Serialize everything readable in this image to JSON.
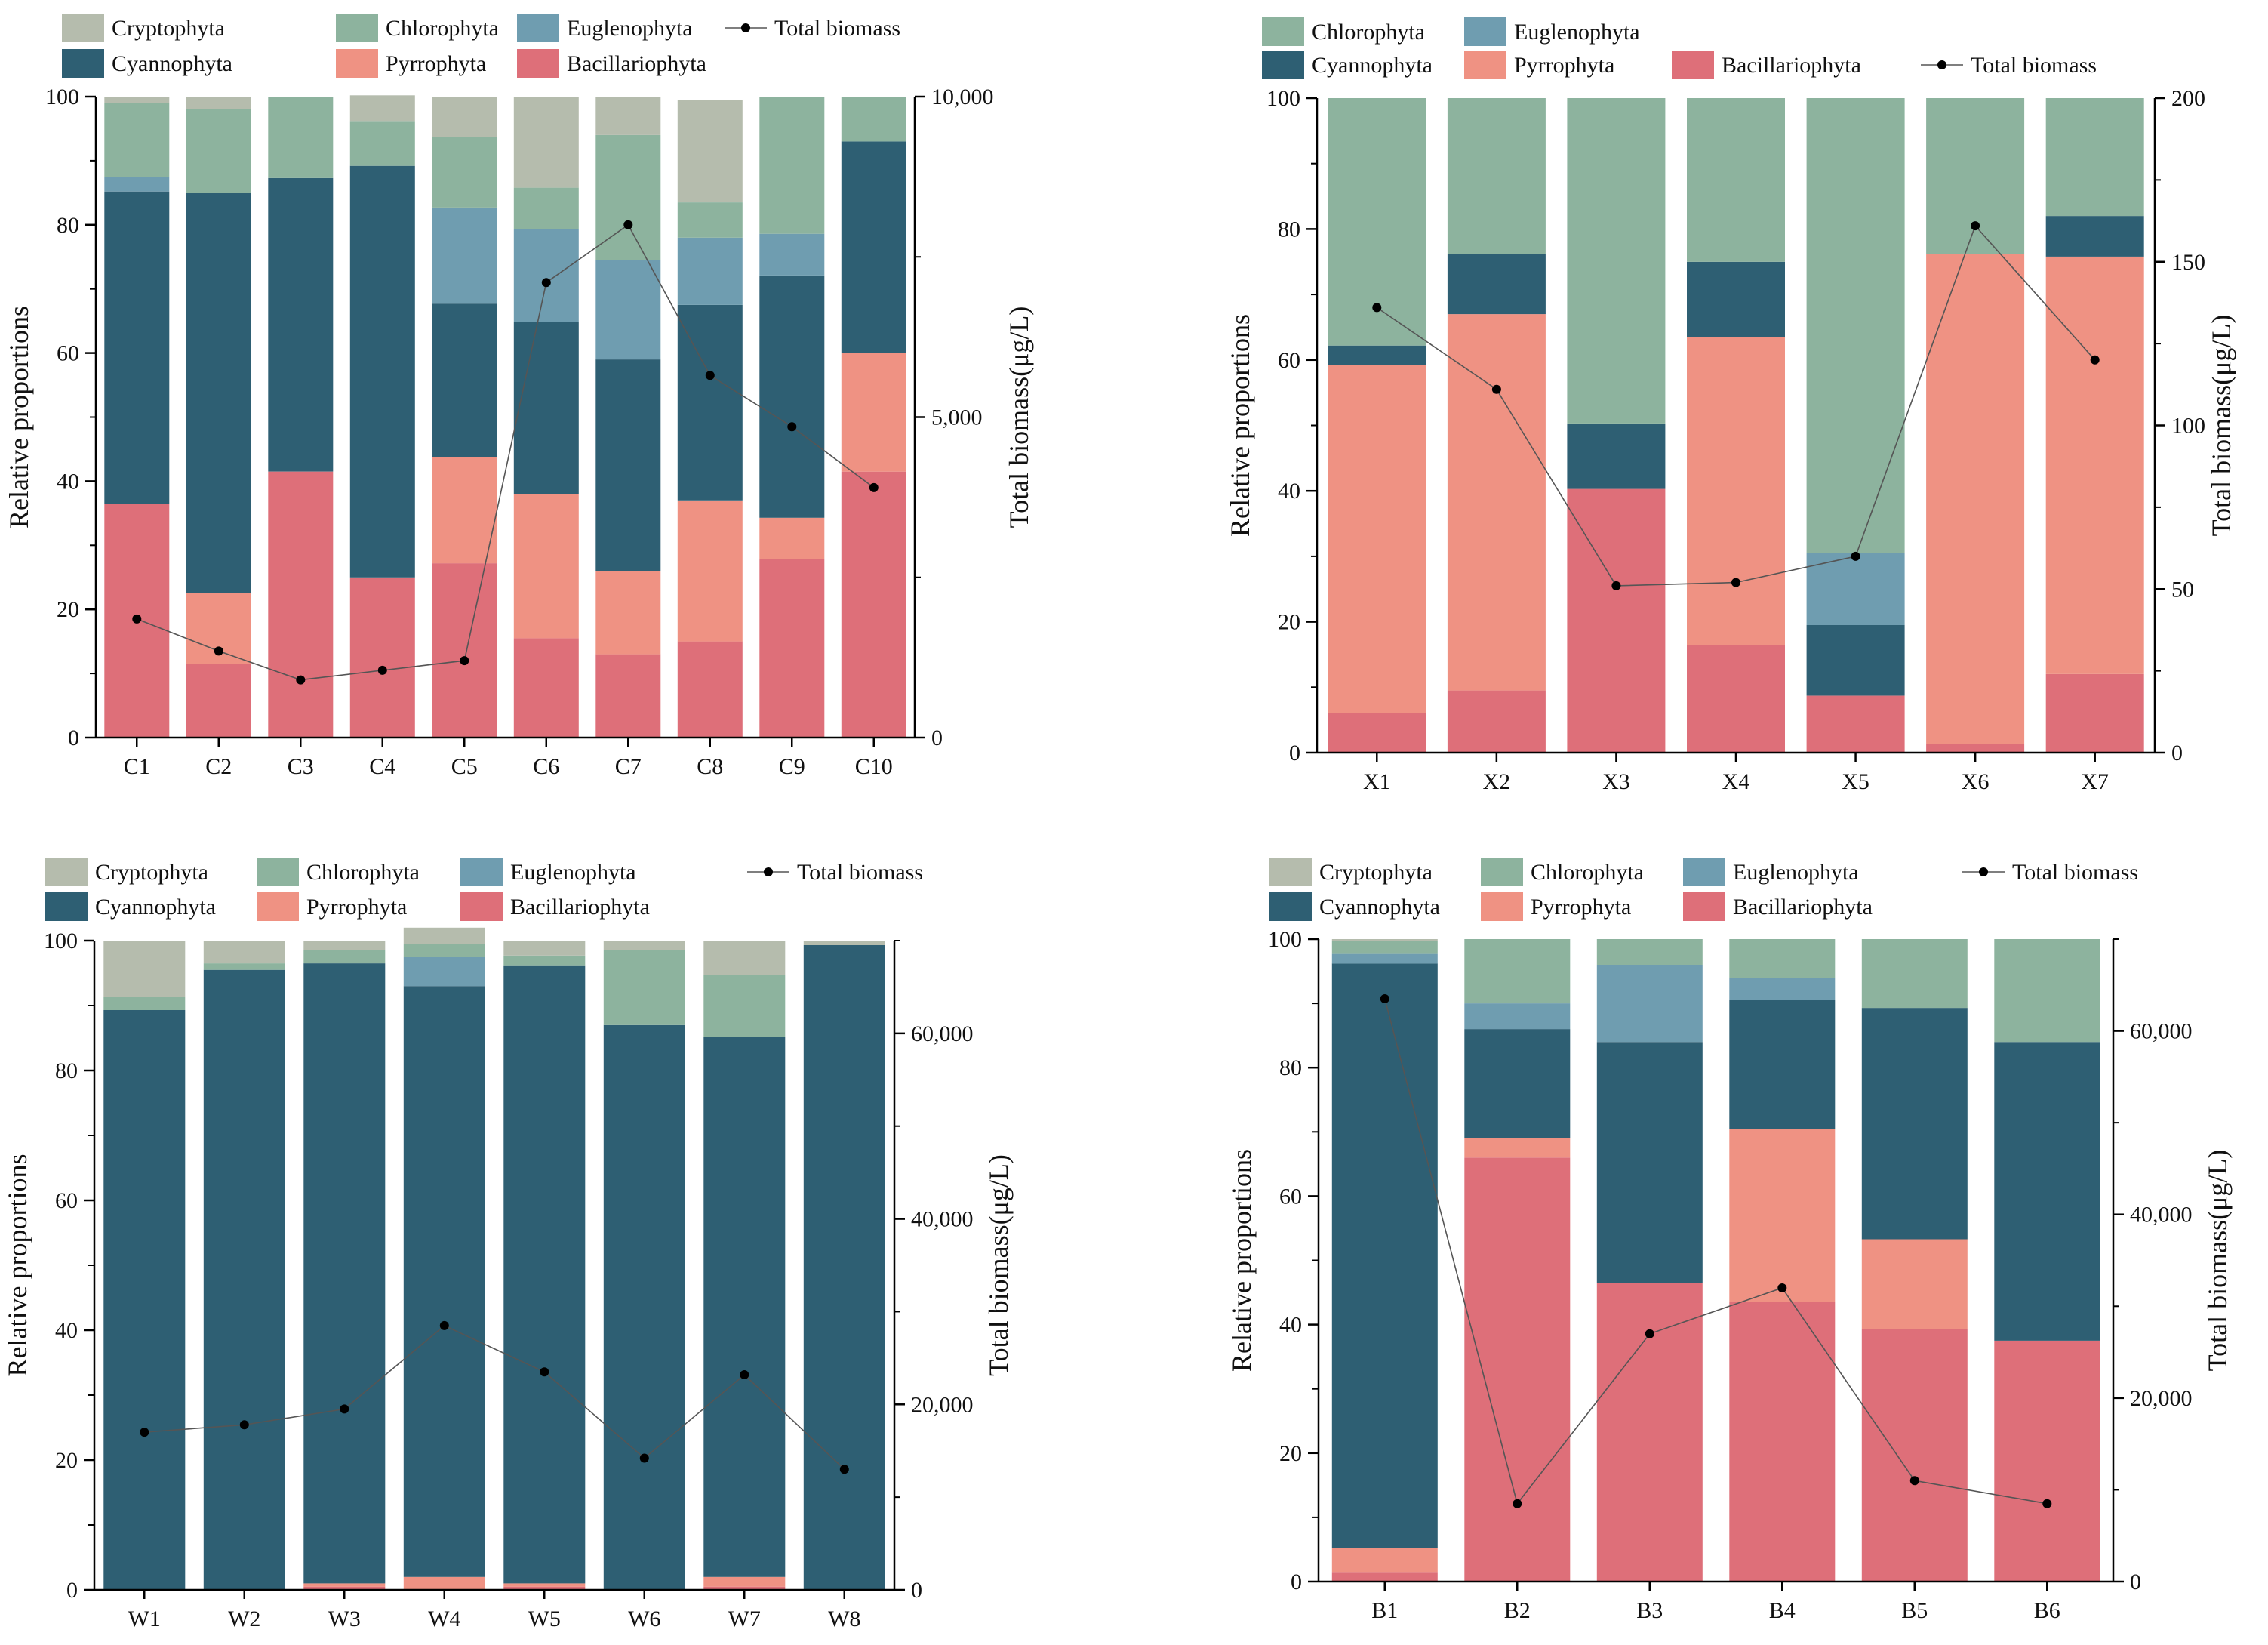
{
  "colors": {
    "Cryptophyta": "#b5bcad",
    "Chlorophyta": "#8db39e",
    "Euglenophyta": "#6f9db0",
    "Cyannophyta": "#2e5f73",
    "Pyrrophyta": "#ef9283",
    "Bacillariophyta": "#de6f79",
    "line": "#555555",
    "marker": "#000000"
  },
  "chart_data": [
    {
      "id": "C",
      "type": "bar",
      "stacked": true,
      "categories": [
        "C1",
        "C2",
        "C3",
        "C4",
        "C5",
        "C6",
        "C7",
        "C8",
        "C9",
        "C10"
      ],
      "legend": [
        "Cryptophyta",
        "Chlorophyta",
        "Euglenophyta",
        "Total biomass",
        "Cyannophyta",
        "Pyrrophyta",
        "Bacillariophyta"
      ],
      "ylabel": "Relative proportions",
      "y2label": "Total biomass(μg/L)",
      "ylim": [
        0,
        100
      ],
      "yticks": [
        "0",
        "20",
        "40",
        "60",
        "80",
        "100"
      ],
      "y2lim": [
        0,
        10000
      ],
      "y2ticks": [
        "0",
        "5,000",
        "10,000"
      ],
      "series": [
        {
          "name": "Bacillariophyta",
          "values": [
            36.5,
            11.5,
            41.5,
            25,
            27.2,
            15.5,
            13,
            15,
            27.8,
            41.5
          ]
        },
        {
          "name": "Pyrrophyta",
          "values": [
            0,
            11,
            0,
            0,
            16.5,
            22.5,
            13,
            22,
            6.5,
            18.5
          ]
        },
        {
          "name": "Cyannophyta",
          "values": [
            48.7,
            62.5,
            45.8,
            64.2,
            24,
            26.8,
            33,
            30.5,
            37.8,
            33
          ]
        },
        {
          "name": "Euglenophyta",
          "values": [
            2.3,
            0,
            0,
            0,
            15,
            14.5,
            15.5,
            10.5,
            6.5,
            0
          ]
        },
        {
          "name": "Chlorophyta",
          "values": [
            11.5,
            13,
            12.7,
            7,
            11,
            6.5,
            19.5,
            5.5,
            21.4,
            7
          ]
        },
        {
          "name": "Cryptophyta",
          "values": [
            1,
            2,
            0,
            4,
            6.3,
            14.2,
            6,
            16,
            0,
            0
          ]
        }
      ],
      "biomass": [
        1850,
        1350,
        900,
        1050,
        1200,
        7100,
        8000,
        5650,
        4850,
        3900
      ]
    },
    {
      "id": "X",
      "type": "bar",
      "stacked": true,
      "categories": [
        "X1",
        "X2",
        "X3",
        "X4",
        "X5",
        "X6",
        "X7"
      ],
      "legend": [
        "Chlorophyta",
        "Euglenophyta",
        "Cyannophyta",
        "Pyrrophyta",
        "Bacillariophyta",
        "Total biomass"
      ],
      "ylabel": "Relative proportions",
      "y2label": "Total biomass(μg/L)",
      "ylim": [
        0,
        100
      ],
      "yticks": [
        "0",
        "20",
        "40",
        "60",
        "80",
        "100"
      ],
      "y2lim": [
        0,
        200
      ],
      "y2ticks": [
        "0",
        "50",
        "100",
        "150",
        "200"
      ],
      "series": [
        {
          "name": "Bacillariophyta",
          "values": [
            6,
            9.5,
            40.3,
            16.5,
            8.7,
            1.3,
            12
          ]
        },
        {
          "name": "Pyrrophyta",
          "values": [
            53.2,
            57.5,
            0,
            47,
            0,
            74.9,
            63.8
          ]
        },
        {
          "name": "Cyannophyta",
          "values": [
            3,
            9.2,
            10,
            11.5,
            10.8,
            0,
            6.2
          ]
        },
        {
          "name": "Euglenophyta",
          "values": [
            0,
            0,
            0,
            0,
            11,
            0,
            0
          ]
        },
        {
          "name": "Chlorophyta",
          "values": [
            37.8,
            23.8,
            49.7,
            25,
            69.5,
            23.8,
            18
          ]
        }
      ],
      "biomass": [
        136,
        111,
        51,
        52,
        60,
        161,
        120
      ]
    },
    {
      "id": "W",
      "type": "bar",
      "stacked": true,
      "categories": [
        "W1",
        "W2",
        "W3",
        "W4",
        "W5",
        "W6",
        "W7",
        "W8"
      ],
      "legend": [
        "Cryptophyta",
        "Chlorophyta",
        "Euglenophyta",
        "Total biomass",
        "Cyannophyta",
        "Pyrrophyta",
        "Bacillariophyta"
      ],
      "ylabel": "Relative proportions",
      "y2label": "Total biomass(μg/L)",
      "ylim": [
        0,
        100
      ],
      "yticks": [
        "0",
        "20",
        "40",
        "60",
        "80",
        "100"
      ],
      "y2lim": [
        0,
        70000
      ],
      "y2ticks": [
        "0",
        "20,000",
        "40,000",
        "60,000"
      ],
      "series": [
        {
          "name": "Bacillariophyta",
          "values": [
            0,
            0,
            0.5,
            0,
            0.5,
            0,
            0.5,
            0
          ]
        },
        {
          "name": "Pyrrophyta",
          "values": [
            0,
            0,
            0.5,
            2,
            0.5,
            0,
            1.5,
            0
          ]
        },
        {
          "name": "Cyannophyta",
          "values": [
            89.3,
            95.5,
            95.5,
            91,
            95.2,
            87,
            83.2,
            99.3
          ]
        },
        {
          "name": "Euglenophyta",
          "values": [
            0,
            0,
            0,
            4.5,
            0,
            0,
            0,
            0
          ]
        },
        {
          "name": "Chlorophyta",
          "values": [
            2,
            1,
            2,
            2,
            1.5,
            11.5,
            9.5,
            0
          ]
        },
        {
          "name": "Cryptophyta",
          "values": [
            8.7,
            3.5,
            1.5,
            2.5,
            2.3,
            1.5,
            5.3,
            0.7
          ]
        }
      ],
      "biomass": [
        17000,
        17800,
        19500,
        28500,
        23500,
        14200,
        23200,
        13000
      ]
    },
    {
      "id": "B",
      "type": "bar",
      "stacked": true,
      "categories": [
        "B1",
        "B2",
        "B3",
        "B4",
        "B5",
        "B6"
      ],
      "legend": [
        "Cryptophyta",
        "Chlorophyta",
        "Euglenophyta",
        "Total biomass",
        "Cyannophyta",
        "Pyrrophyta",
        "Bacillariophyta"
      ],
      "ylabel": "Relative proportions",
      "y2label": "Total biomass(μg/L)",
      "ylim": [
        0,
        100
      ],
      "yticks": [
        "0",
        "20",
        "40",
        "60",
        "80",
        "100"
      ],
      "y2lim": [
        0,
        70000
      ],
      "y2ticks": [
        "0",
        "20,000",
        "40,000",
        "60,000"
      ],
      "series": [
        {
          "name": "Bacillariophyta",
          "values": [
            1.5,
            66,
            46.5,
            43.5,
            39.3,
            37.5
          ]
        },
        {
          "name": "Pyrrophyta",
          "values": [
            3.7,
            3,
            0,
            27,
            14,
            0
          ]
        },
        {
          "name": "Cyannophyta",
          "values": [
            91,
            17,
            37.5,
            20,
            36,
            46.5
          ]
        },
        {
          "name": "Euglenophyta",
          "values": [
            1.5,
            4,
            12,
            3.5,
            0,
            0
          ]
        },
        {
          "name": "Chlorophyta",
          "values": [
            2,
            10,
            4,
            6,
            10.7,
            16
          ]
        },
        {
          "name": "Cryptophyta",
          "values": [
            0.3,
            0,
            0,
            0,
            0,
            0
          ]
        }
      ],
      "biomass": [
        63500,
        8500,
        27000,
        32000,
        11000,
        8500
      ]
    }
  ]
}
